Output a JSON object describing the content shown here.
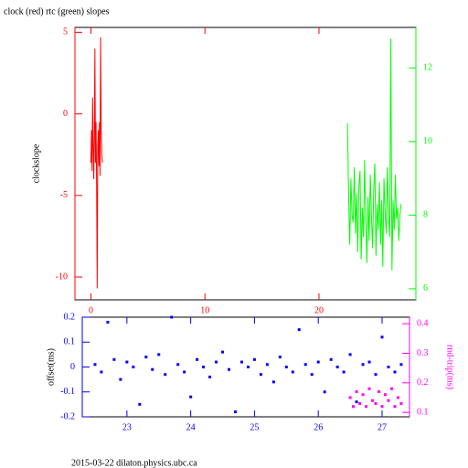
{
  "chart_data": [
    {
      "type": "line",
      "title": "clock (red) rtc (green) slopes",
      "ylabel": "clockslope",
      "xlim": [
        -1.4,
        28.5
      ],
      "xticks": [
        0,
        10,
        20
      ],
      "ylim": [
        -11.4,
        5.3
      ],
      "yticks": [
        -10,
        -5,
        0,
        5
      ],
      "y2lim": [
        5.7,
        13.1
      ],
      "y2ticks": [
        6,
        8,
        10,
        12
      ],
      "series": [
        {
          "name": "clock",
          "color": "#ff0000",
          "axis": "y",
          "x": [
            0.0,
            0.05,
            0.1,
            0.15,
            0.2,
            0.25,
            0.3,
            0.35,
            0.4,
            0.45,
            0.5,
            0.55,
            0.6,
            0.65,
            0.7,
            0.75,
            0.8,
            0.85,
            0.9,
            0.95,
            1.0
          ],
          "values": [
            -3,
            -1,
            -3.5,
            1,
            -2,
            -4,
            -1.5,
            4,
            -3,
            -0.5,
            -4.3,
            -10.7,
            -2,
            -1,
            -3.2,
            -0.5,
            -3.8,
            4.7,
            -1,
            -2.5,
            -3
          ]
        },
        {
          "name": "rtc",
          "color": "#00ff00",
          "axis": "y2",
          "x": [
            22.5,
            22.6,
            22.7,
            22.8,
            22.9,
            23.0,
            23.1,
            23.2,
            23.3,
            23.4,
            23.5,
            23.6,
            23.7,
            23.8,
            23.9,
            24.0,
            24.1,
            24.2,
            24.3,
            24.4,
            24.5,
            24.6,
            24.7,
            24.8,
            24.9,
            25.0,
            25.1,
            25.2,
            25.3,
            25.4,
            25.5,
            25.6,
            25.7,
            25.8,
            25.9,
            26.0,
            26.1,
            26.2,
            26.3,
            26.4,
            26.5,
            26.6,
            26.7,
            26.8,
            26.9,
            27.0,
            27.1,
            27.2
          ],
          "values": [
            10.5,
            8.5,
            7.2,
            9.0,
            8.0,
            7.8,
            9.3,
            7.5,
            8.6,
            7.0,
            8.8,
            9.2,
            6.8,
            8.2,
            7.4,
            9.5,
            7.9,
            6.7,
            8.5,
            7.3,
            9.1,
            8.0,
            7.1,
            8.7,
            9.4,
            6.9,
            8.3,
            7.6,
            8.9,
            7.2,
            8.4,
            6.6,
            9.0,
            8.1,
            7.5,
            9.3,
            8.0,
            7.4,
            12.8,
            6.5,
            8.4,
            7.6,
            9.1,
            7.9,
            8.2,
            7.3,
            8.0,
            8.3
          ]
        }
      ]
    },
    {
      "type": "scatter",
      "ylabel": "offset(ms)",
      "y2label": "rnd-trip(ms)",
      "xlim": [
        22.3,
        27.43
      ],
      "xticks": [
        23,
        24,
        25,
        26,
        27
      ],
      "ylim": [
        -0.2,
        0.2
      ],
      "yticks": [
        -0.2,
        -0.1,
        0,
        0.1,
        0.2
      ],
      "y2lim": [
        0.085,
        0.422
      ],
      "y2ticks": [
        0.1,
        0.2,
        0.3,
        0.4
      ],
      "series": [
        {
          "name": "offset",
          "color": "#0000ff",
          "axis": "y",
          "x": [
            22.5,
            22.6,
            22.7,
            22.8,
            22.9,
            23.0,
            23.1,
            23.2,
            23.3,
            23.4,
            23.5,
            23.6,
            23.7,
            23.8,
            23.9,
            24.0,
            24.1,
            24.2,
            24.3,
            24.4,
            24.5,
            24.6,
            24.7,
            24.8,
            24.9,
            25.0,
            25.1,
            25.2,
            25.3,
            25.4,
            25.5,
            25.6,
            25.7,
            25.8,
            25.9,
            26.0,
            26.1,
            26.2,
            26.3,
            26.4,
            26.5,
            26.6,
            26.7,
            26.8,
            26.9,
            27.0,
            27.1,
            27.2,
            27.3
          ],
          "values": [
            0.01,
            -0.02,
            0.18,
            0.03,
            -0.05,
            0.02,
            0.0,
            -0.15,
            0.04,
            -0.01,
            0.05,
            -0.03,
            0.2,
            0.01,
            -0.02,
            -0.12,
            0.03,
            0.0,
            -0.04,
            0.02,
            0.06,
            -0.01,
            -0.18,
            0.02,
            0.0,
            0.03,
            -0.03,
            0.01,
            -0.06,
            0.04,
            0.0,
            -0.02,
            0.15,
            0.01,
            -0.03,
            0.02,
            -0.1,
            0.03,
            0.0,
            -0.02,
            0.05,
            -0.14,
            0.01,
            0.02,
            -0.03,
            0.12,
            0.0,
            -0.02,
            0.01
          ]
        },
        {
          "name": "rnd-trip",
          "color": "#ff00ff",
          "axis": "y2",
          "x": [
            26.5,
            26.55,
            26.6,
            26.65,
            26.7,
            26.75,
            26.8,
            26.85,
            26.9,
            26.95,
            27.0,
            27.05,
            27.1,
            27.15,
            27.2,
            27.25,
            27.3
          ],
          "values": [
            0.15,
            0.12,
            0.17,
            0.13,
            0.16,
            0.12,
            0.18,
            0.14,
            0.13,
            0.17,
            0.12,
            0.16,
            0.14,
            0.18,
            0.12,
            0.15,
            0.13
          ]
        }
      ]
    }
  ],
  "footer": "2015-03-22 dilaton.physics.ubc.ca"
}
